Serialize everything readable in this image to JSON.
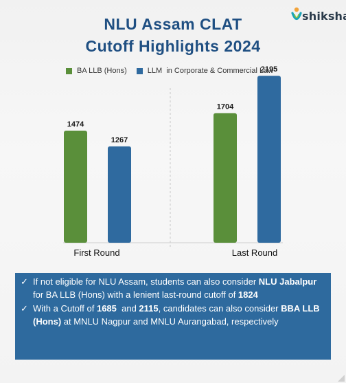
{
  "header": {
    "title_line1": "NLU Assam CLAT",
    "title_line2": "Cutoff Highlights 2024",
    "logo_text": "shiksha"
  },
  "colors": {
    "title": "#1f4f82",
    "series_1": "#5a8f3a",
    "series_2": "#2f6a9f",
    "info_bg": "#2e6a9e"
  },
  "chart_data": {
    "type": "bar",
    "categories": [
      "First Round",
      "Last Round"
    ],
    "series": [
      {
        "name": "BA LLB (Hons)",
        "values": [
          1474,
          1704
        ]
      },
      {
        "name": "LLM  in Corporate & Commercial Law",
        "values": [
          1267,
          2195
        ]
      }
    ],
    "ylim": [
      0,
      2400
    ],
    "legend_position": "top",
    "grid": false
  },
  "info": {
    "bullet1": {
      "p1": "If not eligible for NLU Assam, students can also consider ",
      "b1": "NLU Jabalpur",
      "p2": " for BA LLB (Hons) with  a lenient last-round cutoff of ",
      "b2": "1824"
    },
    "bullet2": {
      "p1": "With a Cutoff of ",
      "b1": "1685",
      "p2": "  and ",
      "b2": "2115",
      "p3": ", candidates can also consider ",
      "b3": "BBA LLB (Hons)",
      "p4": " at MNLU Nagpur and MNLU Aurangabad, respectively"
    },
    "check_icon": "✓"
  }
}
